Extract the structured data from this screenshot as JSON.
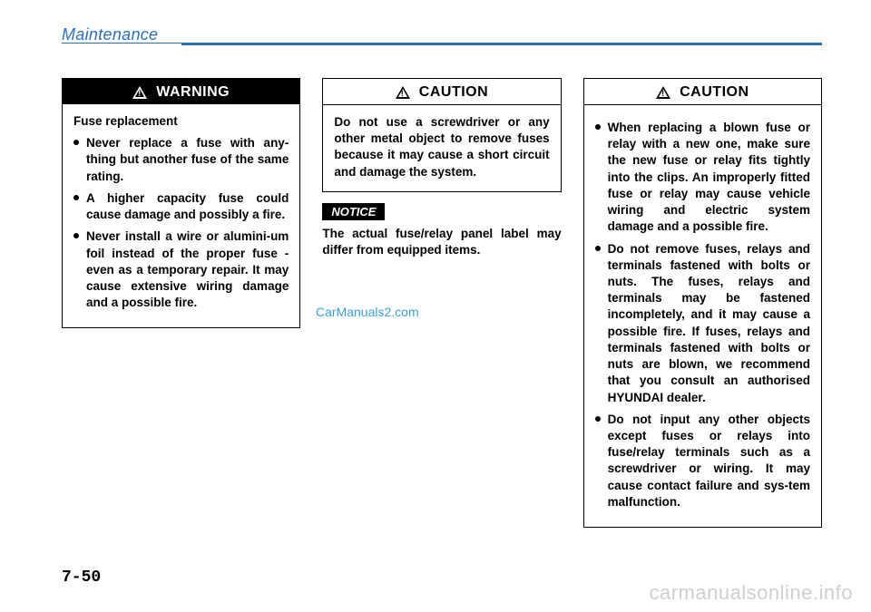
{
  "header": {
    "title": "Maintenance",
    "rule_color": "#2d6fb6"
  },
  "col1": {
    "warning": {
      "label": "WARNING",
      "subhead": "Fuse replacement",
      "bullets": [
        "Never replace a fuse with any-thing but another fuse of the same rating.",
        "A higher capacity fuse could cause damage and possibly a fire.",
        "Never install a wire or alumini-um foil instead of the proper fuse - even as a temporary repair. It may cause extensive wiring damage and a possible fire."
      ]
    }
  },
  "col2": {
    "caution": {
      "label": "CAUTION",
      "text": "Do not use a screwdriver or any other metal object to remove fuses because it may cause a short circuit and damage the system."
    },
    "notice": {
      "tag": "NOTICE",
      "text": "The actual fuse/relay panel label may differ from equipped items."
    }
  },
  "col3": {
    "caution": {
      "label": "CAUTION",
      "bullets": [
        "When replacing a blown fuse or relay with a new one, make sure the new fuse or relay fits tightly into the clips. An improperly fitted fuse or relay may cause vehicle wiring and electric system damage and a possible fire.",
        "Do not remove fuses, relays and terminals fastened with bolts or nuts. The fuses, relays and terminals may be fastened incompletely, and it may cause a possible fire. If fuses, relays and terminals fastened with bolts or nuts are blown, we recommend that you consult an authorised HYUNDAI dealer.",
        "Do not input any other objects except fuses or relays into fuse/relay terminals such as a screwdriver or wiring. It may cause contact failure and sys-tem malfunction."
      ]
    }
  },
  "watermarks": {
    "mid": "CarManuals2.com",
    "bottom": "carmanualsonline.info"
  },
  "page_number": "7-50",
  "colors": {
    "page_bg": "#ffffff",
    "text": "#000000",
    "accent_blue": "#2d6fb6",
    "light_blue": "#3aa0e0",
    "light_gray": "#cfcfcf"
  }
}
